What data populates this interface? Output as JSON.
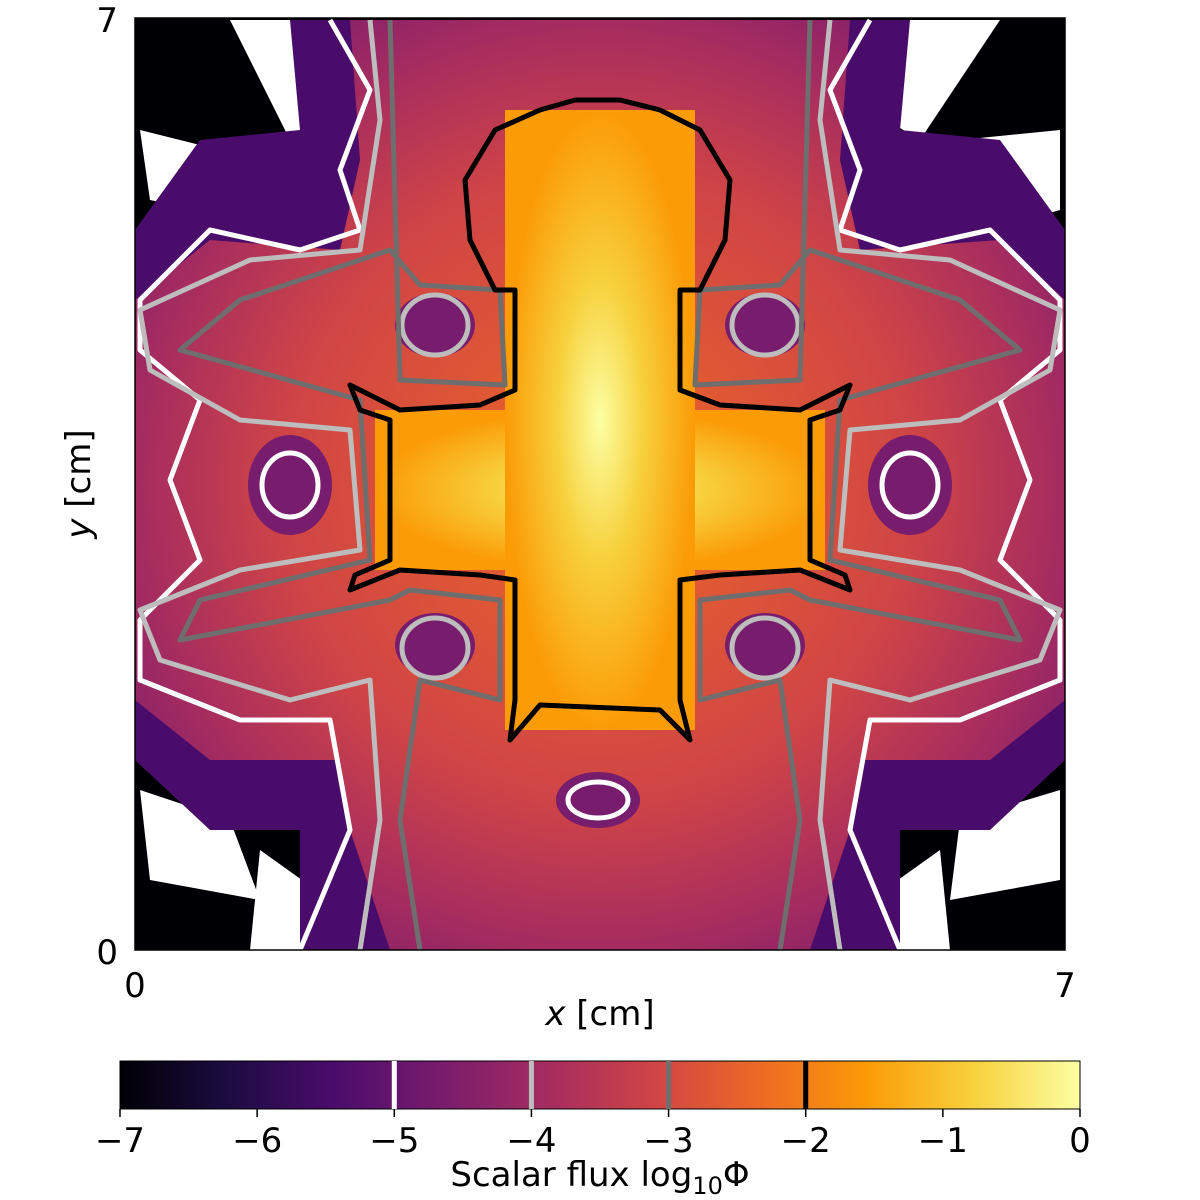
{
  "chart_data": {
    "type": "heatmap",
    "title": "",
    "xlabel": {
      "var": "x",
      "unit": "[cm]"
    },
    "ylabel": {
      "var": "y",
      "unit": "[cm]"
    },
    "xlim": [
      0,
      7
    ],
    "ylim": [
      0,
      7
    ],
    "x_ticks": [
      "0",
      "7"
    ],
    "y_ticks": [
      "0",
      "7"
    ],
    "colormap": "inferno",
    "colormap_stops": [
      "#000004",
      "#1b0c41",
      "#4a0c6b",
      "#781c6d",
      "#a52c60",
      "#cf4446",
      "#ed6925",
      "#fb9b06",
      "#f7d13d",
      "#fcffa4"
    ],
    "below_min_color": "#ffffff",
    "colorbar": {
      "label_main": "Scalar flux log",
      "label_sub": "10",
      "label_sym": "Φ",
      "range": [
        -7,
        0
      ],
      "ticks": [
        "−7",
        "−6",
        "−5",
        "−4",
        "−3",
        "−2",
        "−1",
        "0"
      ],
      "orientation": "horizontal",
      "placement": "bottom"
    },
    "contour_levels": [
      {
        "level": -5,
        "color": "#ffffff"
      },
      {
        "level": -4,
        "color": "#bdbdbd"
      },
      {
        "level": -3,
        "color": "#6e6e6e"
      },
      {
        "level": -2,
        "color": "#000000"
      }
    ]
  }
}
